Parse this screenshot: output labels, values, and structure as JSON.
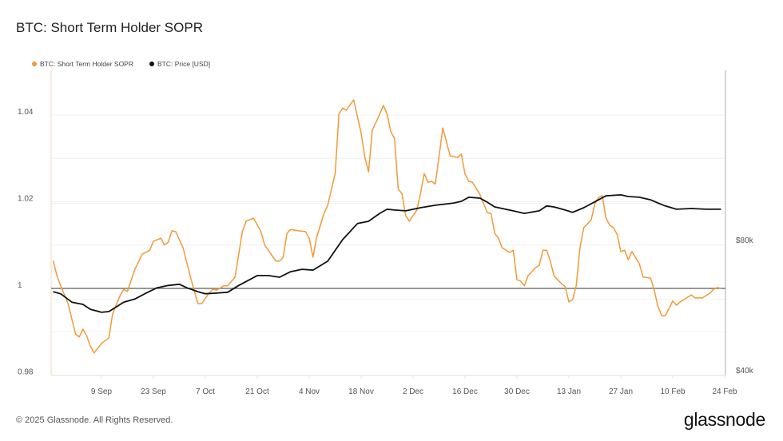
{
  "header": {
    "title": "BTC: Short Term Holder SOPR"
  },
  "footer": {
    "copyright": "© 2025 Glassnode. All Rights Reserved.",
    "logo": "glassnode"
  },
  "chart_data": {
    "type": "line",
    "title": "BTC: Short Term Holder SOPR",
    "legend_placement": "top-left",
    "grid": true,
    "x_axis": {
      "type": "date",
      "range": [
        "2024-08-26",
        "2025-02-24"
      ],
      "ticks": [
        "9 Sep",
        "23 Sep",
        "7 Oct",
        "21 Oct",
        "4 Nov",
        "18 Nov",
        "2 Dec",
        "16 Dec",
        "30 Dec",
        "13 Jan",
        "27 Jan",
        "10 Feb",
        "24 Feb"
      ],
      "tick_dates": [
        "2024-09-09",
        "2024-09-23",
        "2024-10-07",
        "2024-10-21",
        "2024-11-04",
        "2024-11-18",
        "2024-12-02",
        "2024-12-16",
        "2024-12-30",
        "2025-01-13",
        "2025-01-27",
        "2025-02-10",
        "2025-02-24"
      ]
    },
    "y_axis_left": {
      "range": [
        0.98,
        1.045
      ],
      "ticks": [
        "1.04",
        "1.02",
        "1",
        "0.98"
      ],
      "tick_values": [
        1.04,
        1.02,
        1,
        0.98
      ]
    },
    "y_axis_right": {
      "scale": "log",
      "unit": "USD (thousands)",
      "range": [
        40,
        120
      ],
      "ticks": [
        "$80k",
        "$40k"
      ],
      "tick_values": [
        80,
        40
      ]
    },
    "reference_line": {
      "value": 1,
      "color": "#777777"
    },
    "series": [
      {
        "name": "BTC: Short Term Holder SOPR",
        "axis": "left",
        "color": "#f09a37",
        "points": [
          [
            "2024-08-27",
            1.0064
          ],
          [
            "2024-08-28",
            1.0029
          ],
          [
            "2024-08-29",
            1.0006
          ],
          [
            "2024-08-31",
            0.9965
          ],
          [
            "2024-09-02",
            0.9895
          ],
          [
            "2024-09-03",
            0.9888
          ],
          [
            "2024-09-04",
            0.9906
          ],
          [
            "2024-09-05",
            0.9891
          ],
          [
            "2024-09-06",
            0.9867
          ],
          [
            "2024-09-07",
            0.9851
          ],
          [
            "2024-09-09",
            0.9873
          ],
          [
            "2024-09-11",
            0.9886
          ],
          [
            "2024-09-12",
            0.9941
          ],
          [
            "2024-09-14",
            0.9983
          ],
          [
            "2024-09-15",
            0.9998
          ],
          [
            "2024-09-16",
            0.9993
          ],
          [
            "2024-09-18",
            1.0044
          ],
          [
            "2024-09-20",
            1.0079
          ],
          [
            "2024-09-22",
            1.0088
          ],
          [
            "2024-09-23",
            1.0109
          ],
          [
            "2024-09-24",
            1.0112
          ],
          [
            "2024-09-25",
            1.0116
          ],
          [
            "2024-09-26",
            1.01
          ],
          [
            "2024-09-27",
            1.0107
          ],
          [
            "2024-09-28",
            1.0133
          ],
          [
            "2024-09-29",
            1.0131
          ],
          [
            "2024-10-01",
            1.0094
          ],
          [
            "2024-10-03",
            1.0026
          ],
          [
            "2024-10-05",
            0.9965
          ],
          [
            "2024-10-06",
            0.9965
          ],
          [
            "2024-10-08",
            0.9989
          ],
          [
            "2024-10-09",
            0.9998
          ],
          [
            "2024-10-10",
            0.9996
          ],
          [
            "2024-10-12",
            1.0006
          ],
          [
            "2024-10-13",
            1.0006
          ],
          [
            "2024-10-15",
            1.0026
          ],
          [
            "2024-10-17",
            1.0131
          ],
          [
            "2024-10-18",
            1.0155
          ],
          [
            "2024-10-20",
            1.0162
          ],
          [
            "2024-10-22",
            1.0131
          ],
          [
            "2024-10-23",
            1.01
          ],
          [
            "2024-10-24",
            1.0088
          ],
          [
            "2024-10-26",
            1.0063
          ],
          [
            "2024-10-27",
            1.0063
          ],
          [
            "2024-10-28",
            1.0072
          ],
          [
            "2024-10-29",
            1.0127
          ],
          [
            "2024-10-30",
            1.0136
          ],
          [
            "2024-11-01",
            1.0133
          ],
          [
            "2024-11-03",
            1.0131
          ],
          [
            "2024-11-04",
            1.0116
          ],
          [
            "2024-11-05",
            1.0072
          ],
          [
            "2024-11-06",
            1.0118
          ],
          [
            "2024-11-08",
            1.0173
          ],
          [
            "2024-11-09",
            1.0192
          ],
          [
            "2024-11-11",
            1.0265
          ],
          [
            "2024-11-12",
            1.0402
          ],
          [
            "2024-11-13",
            1.0416
          ],
          [
            "2024-11-14",
            1.0411
          ],
          [
            "2024-11-16",
            1.0435
          ],
          [
            "2024-11-18",
            1.0358
          ],
          [
            "2024-11-19",
            1.0302
          ],
          [
            "2024-11-20",
            1.0269
          ],
          [
            "2024-11-21",
            1.0365
          ],
          [
            "2024-11-22",
            1.0383
          ],
          [
            "2024-11-24",
            1.0422
          ],
          [
            "2024-11-25",
            1.0402
          ],
          [
            "2024-11-26",
            1.0361
          ],
          [
            "2024-11-27",
            1.0346
          ],
          [
            "2024-11-28",
            1.0229
          ],
          [
            "2024-11-29",
            1.0219
          ],
          [
            "2024-11-30",
            1.0168
          ],
          [
            "2024-12-01",
            1.0155
          ],
          [
            "2024-12-03",
            1.0181
          ],
          [
            "2024-12-04",
            1.0219
          ],
          [
            "2024-12-05",
            1.0265
          ],
          [
            "2024-12-06",
            1.0245
          ],
          [
            "2024-12-07",
            1.0247
          ],
          [
            "2024-12-08",
            1.0241
          ],
          [
            "2024-12-10",
            1.037
          ],
          [
            "2024-12-12",
            1.0306
          ],
          [
            "2024-12-14",
            1.0302
          ],
          [
            "2024-12-15",
            1.031
          ],
          [
            "2024-12-16",
            1.0264
          ],
          [
            "2024-12-17",
            1.0247
          ],
          [
            "2024-12-18",
            1.0245
          ],
          [
            "2024-12-20",
            1.0217
          ],
          [
            "2024-12-22",
            1.0175
          ],
          [
            "2024-12-23",
            1.0173
          ],
          [
            "2024-12-24",
            1.0127
          ],
          [
            "2024-12-25",
            1.0116
          ],
          [
            "2024-12-26",
            1.0094
          ],
          [
            "2024-12-28",
            1.0083
          ],
          [
            "2024-12-29",
            1.0088
          ],
          [
            "2024-12-30",
            1.002
          ],
          [
            "2024-12-31",
            1.0017
          ],
          [
            "2025-01-01",
            1.0006
          ],
          [
            "2025-01-02",
            1.0029
          ],
          [
            "2025-01-04",
            1.0048
          ],
          [
            "2025-01-05",
            1.0053
          ],
          [
            "2025-01-06",
            1.0088
          ],
          [
            "2025-01-07",
            1.0088
          ],
          [
            "2025-01-08",
            1.0063
          ],
          [
            "2025-01-09",
            1.0029
          ],
          [
            "2025-01-11",
            1.0011
          ],
          [
            "2025-01-12",
            1.0004
          ],
          [
            "2025-01-13",
            0.9969
          ],
          [
            "2025-01-14",
            0.9974
          ],
          [
            "2025-01-15",
            1.0007
          ],
          [
            "2025-01-16",
            1.0094
          ],
          [
            "2025-01-17",
            1.014
          ],
          [
            "2025-01-19",
            1.0158
          ],
          [
            "2025-01-20",
            1.0195
          ],
          [
            "2025-01-21",
            1.021
          ],
          [
            "2025-01-22",
            1.0214
          ],
          [
            "2025-01-23",
            1.0162
          ],
          [
            "2025-01-24",
            1.0146
          ],
          [
            "2025-01-25",
            1.014
          ],
          [
            "2025-01-26",
            1.0125
          ],
          [
            "2025-01-27",
            1.0085
          ],
          [
            "2025-01-28",
            1.0088
          ],
          [
            "2025-01-29",
            1.0066
          ],
          [
            "2025-01-30",
            1.0085
          ],
          [
            "2025-02-01",
            1.0057
          ],
          [
            "2025-02-02",
            1.0026
          ],
          [
            "2025-02-04",
            1.0024
          ],
          [
            "2025-02-05",
            0.9996
          ],
          [
            "2025-02-06",
            0.9959
          ],
          [
            "2025-02-07",
            0.9937
          ],
          [
            "2025-02-08",
            0.9937
          ],
          [
            "2025-02-10",
            0.9971
          ],
          [
            "2025-02-11",
            0.9961
          ],
          [
            "2025-02-12",
            0.9969
          ],
          [
            "2025-02-13",
            0.9974
          ],
          [
            "2025-02-15",
            0.9985
          ],
          [
            "2025-02-16",
            0.9978
          ],
          [
            "2025-02-18",
            0.9978
          ],
          [
            "2025-02-20",
            0.9989
          ],
          [
            "2025-02-21",
            0.9998
          ],
          [
            "2025-02-22",
            1.0002
          ],
          [
            "2025-02-23",
            1.0
          ]
        ]
      },
      {
        "name": "BTC: Price [USD]",
        "axis": "right",
        "color": "#111111",
        "unit": "thousands USD",
        "points": [
          [
            "2024-08-27",
            62.5
          ],
          [
            "2024-08-29",
            61.8
          ],
          [
            "2024-09-01",
            59.1
          ],
          [
            "2024-09-04",
            58.4
          ],
          [
            "2024-09-06",
            56.9
          ],
          [
            "2024-09-09",
            56.0
          ],
          [
            "2024-09-11",
            56.2
          ],
          [
            "2024-09-15",
            59.1
          ],
          [
            "2024-09-18",
            60.1
          ],
          [
            "2024-09-21",
            62.0
          ],
          [
            "2024-09-24",
            63.8
          ],
          [
            "2024-09-27",
            64.6
          ],
          [
            "2024-09-30",
            65.0
          ],
          [
            "2024-10-02",
            63.8
          ],
          [
            "2024-10-05",
            62.5
          ],
          [
            "2024-10-07",
            61.8
          ],
          [
            "2024-10-10",
            62.0
          ],
          [
            "2024-10-13",
            62.3
          ],
          [
            "2024-10-16",
            64.6
          ],
          [
            "2024-10-21",
            68.1
          ],
          [
            "2024-10-24",
            68.1
          ],
          [
            "2024-10-27",
            67.5
          ],
          [
            "2024-10-30",
            69.5
          ],
          [
            "2024-11-02",
            70.4
          ],
          [
            "2024-11-05",
            70.1
          ],
          [
            "2024-11-09",
            73.5
          ],
          [
            "2024-11-13",
            82.4
          ],
          [
            "2024-11-17",
            89.8
          ],
          [
            "2024-11-20",
            90.9
          ],
          [
            "2024-11-23",
            94.8
          ],
          [
            "2024-11-25",
            96.9
          ],
          [
            "2024-11-27",
            96.5
          ],
          [
            "2024-11-30",
            96.1
          ],
          [
            "2024-12-04",
            97.7
          ],
          [
            "2024-12-08",
            99.0
          ],
          [
            "2024-12-13",
            100.2
          ],
          [
            "2024-12-15",
            101.1
          ],
          [
            "2024-12-17",
            103.3
          ],
          [
            "2024-12-20",
            102.8
          ],
          [
            "2024-12-22",
            100.6
          ],
          [
            "2024-12-24",
            98.1
          ],
          [
            "2024-12-28",
            96.5
          ],
          [
            "2025-01-01",
            94.8
          ],
          [
            "2025-01-05",
            96.1
          ],
          [
            "2025-01-07",
            98.6
          ],
          [
            "2025-01-09",
            98.1
          ],
          [
            "2025-01-12",
            96.5
          ],
          [
            "2025-01-14",
            95.3
          ],
          [
            "2025-01-17",
            97.7
          ],
          [
            "2025-01-21",
            101.9
          ],
          [
            "2025-01-23",
            104.1
          ],
          [
            "2025-01-27",
            104.6
          ],
          [
            "2025-01-29",
            103.7
          ],
          [
            "2025-02-01",
            103.3
          ],
          [
            "2025-02-04",
            101.9
          ],
          [
            "2025-02-06",
            100.2
          ],
          [
            "2025-02-08",
            98.6
          ],
          [
            "2025-02-11",
            96.9
          ],
          [
            "2025-02-15",
            97.3
          ],
          [
            "2025-02-19",
            96.9
          ],
          [
            "2025-02-23",
            96.9
          ]
        ]
      }
    ]
  }
}
